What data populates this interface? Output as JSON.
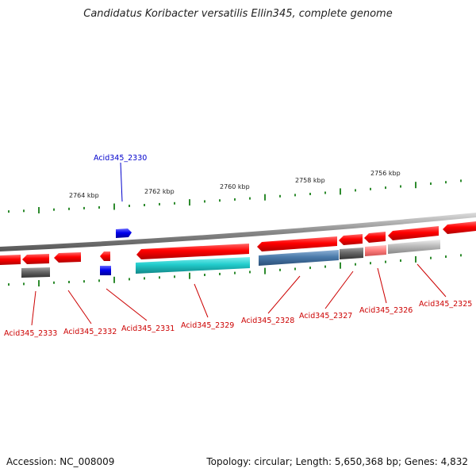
{
  "title": "Candidatus Koribacter versatilis Ellin345, complete genome",
  "footer": {
    "accession": "Accession: NC_008009",
    "topology": "Topology: circular; Length: 5,650,368 bp; Genes: 4,832"
  },
  "scale_labels": [
    {
      "text": "2764 kbp",
      "kbp": 2764
    },
    {
      "text": "2762 kbp",
      "kbp": 2762
    },
    {
      "text": "2760 kbp",
      "kbp": 2760
    },
    {
      "text": "2758 kbp",
      "kbp": 2758
    },
    {
      "text": "2756 kbp",
      "kbp": 2756
    }
  ],
  "genes": [
    {
      "name": "Acid345_2330",
      "color": "#0000cc"
    },
    {
      "name": "Acid345_2333",
      "color": "#cc0000"
    },
    {
      "name": "Acid345_2332",
      "color": "#cc0000"
    },
    {
      "name": "Acid345_2331",
      "color": "#cc0000"
    },
    {
      "name": "Acid345_2329",
      "color": "#cc0000"
    },
    {
      "name": "Acid345_2328",
      "color": "#cc0000"
    },
    {
      "name": "Acid345_2327",
      "color": "#cc0000"
    },
    {
      "name": "Acid345_2326",
      "color": "#cc0000"
    },
    {
      "name": "Acid345_2325",
      "color": "#cc0000"
    }
  ],
  "colors": {
    "cds": "#ff0000",
    "rna_blue": "#0000ee",
    "cyan": "#22cccc",
    "steel": "#4a7aaa",
    "dark_gray": "#666666",
    "pink": "#ff8080",
    "light_gray": "#bbbbbb",
    "tick": "#2e8b2e",
    "backbone": "#888888"
  }
}
